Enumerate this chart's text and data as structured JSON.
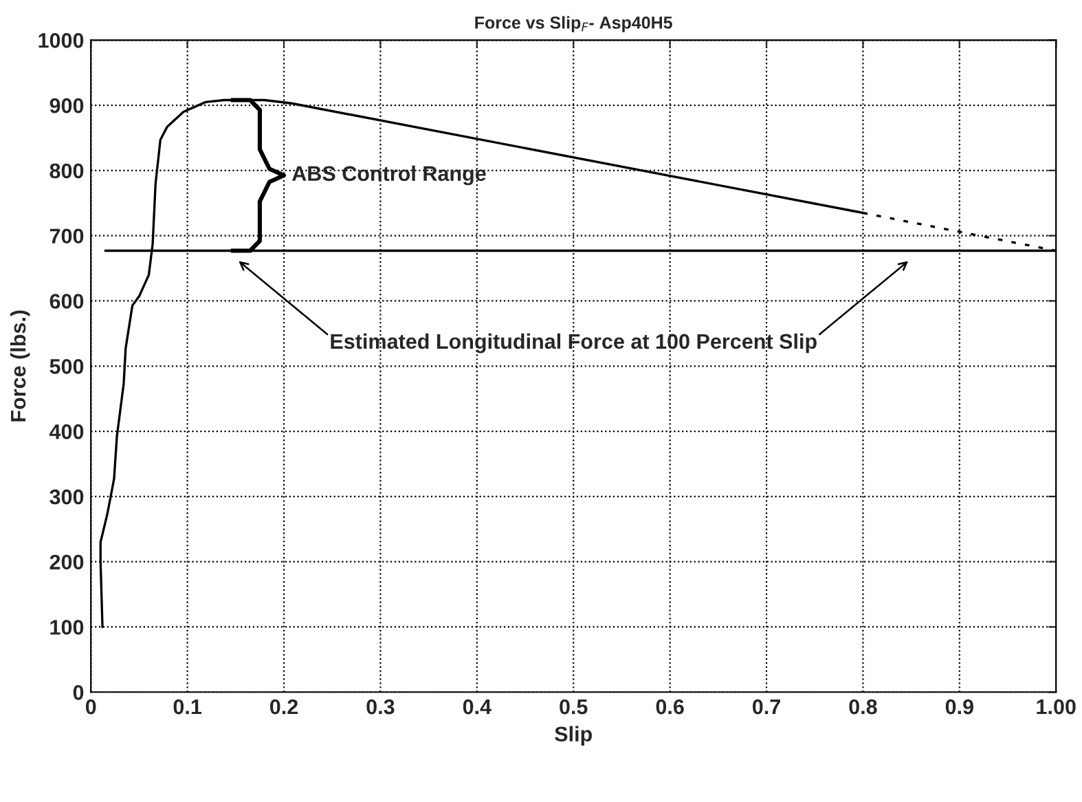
{
  "chart_data": {
    "type": "line",
    "title": "Force vs Slip$_{F}$- Asp40H5",
    "xlabel": "Slip",
    "ylabel": "Force (lbs.)",
    "series": [
      {
        "color": "#000000",
        "line_style": "solid",
        "x": [
          0.012,
          0.01,
          0.01,
          0.017,
          0.024,
          0.027,
          0.034,
          0.036,
          0.043,
          0.05,
          0.06,
          0.064,
          0.067,
          0.072,
          0.079,
          0.096,
          0.119,
          0.138,
          0.18,
          0.208,
          0.8
        ],
        "values": [
          100,
          200,
          230,
          273,
          327,
          393,
          473,
          527,
          593,
          607,
          640,
          687,
          780,
          847,
          867,
          890,
          905,
          908,
          908,
          903,
          735
        ]
      },
      {
        "color": "#000000",
        "line_style": "dashed",
        "x": [
          0.8,
          1.0
        ],
        "values": [
          735,
          677
        ]
      }
    ],
    "ref_lines": [
      {
        "axis": "y",
        "value": 677,
        "color": "#000000",
        "line_style": "solid"
      }
    ],
    "annotations": [
      "ABS Control Range",
      "Estimated Longitudinal Force at 100 Percent Slip"
    ],
    "xlim": [
      0,
      1
    ],
    "ylim": [
      0,
      1000
    ],
    "xticks": [
      0,
      0.1,
      0.2,
      0.3,
      0.4,
      0.5,
      0.6,
      0.7,
      0.8,
      0.9,
      {
        "value": 1,
        "label": "1.00"
      }
    ],
    "yticks": [
      0,
      100,
      200,
      300,
      400,
      500,
      600,
      700,
      800,
      900,
      1000
    ],
    "grid": true,
    "legend": false
  }
}
